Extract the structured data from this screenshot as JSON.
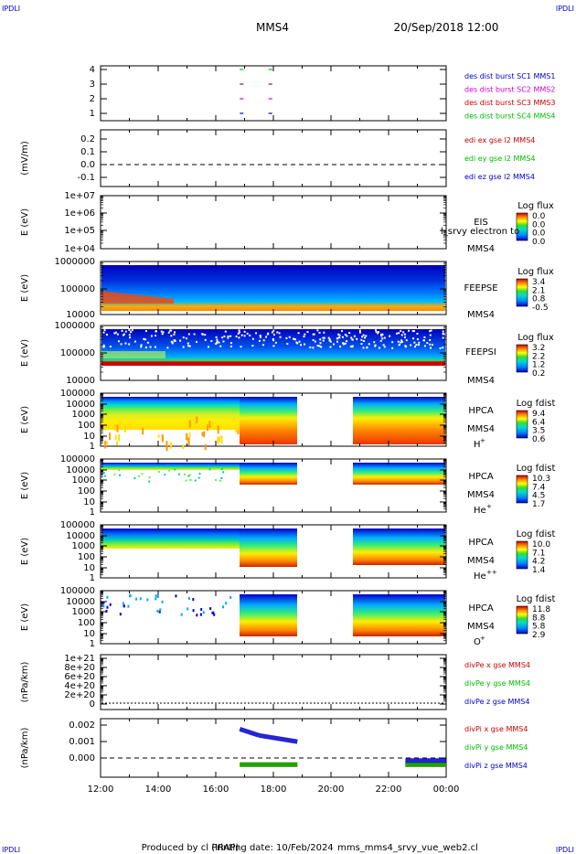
{
  "header": {
    "corner_tl": "IPDLI",
    "corner_tr": "IPDLI",
    "corner_bl": "IPDLI",
    "corner_br": "IPDLI",
    "spacecraft": "MMS4",
    "datetime": "20/Sep/2018 12:00"
  },
  "footer": {
    "produced_by": "Produced by cl (IRAP)",
    "printing_date": "Printing date: 10/Feb/2024",
    "filename": "mms_mms4_srvy_vue_web2.cl"
  },
  "x_ticks": [
    "12:00",
    "14:00",
    "16:00",
    "18:00",
    "20:00",
    "22:00",
    "00:00"
  ],
  "panels": {
    "burst": {
      "y_ticks": [
        "4",
        "3",
        "2",
        "1"
      ],
      "legend": [
        "des dist burst SC1 MMS1",
        "des dist burst SC2 MMS2",
        "des dist burst SC3 MMS3",
        "des dist burst SC4 MMS4"
      ],
      "legend_colors": [
        "#0000cc",
        "#cc00cc",
        "#cc0000",
        "#00bb00"
      ]
    },
    "edi": {
      "ylabel": "(mV/m)",
      "y_ticks": [
        "0.2",
        "0.1",
        "0.0",
        "-0.1"
      ],
      "legend": [
        "edi ex gse l2 MMS4",
        "edi ey gse l2 MMS4",
        "edi ez gse l2 MMS4"
      ],
      "legend_colors": [
        "#cc0000",
        "#00bb00",
        "#0000cc"
      ]
    },
    "eis": {
      "ylabel": "E (eV)",
      "y_ticks": [
        "1e+07",
        "1e+06",
        "1e+05",
        "1e+04"
      ],
      "label": "EIS",
      "sublabel": "MMS4",
      "extra": "l_srvy electron to",
      "cbar_title": "Log flux",
      "cbar_ticks": [
        "0.0",
        "0.0",
        "0.0",
        "0.0"
      ]
    },
    "feepse": {
      "ylabel": "E (eV)",
      "y_ticks": [
        "1000000",
        "100000",
        "10000"
      ],
      "label": "FEEPSE",
      "sublabel": "MMS4",
      "cbar_title": "Log flux",
      "cbar_ticks": [
        "3.4",
        "2.1",
        "0.8",
        "-0.5"
      ]
    },
    "feepsi": {
      "ylabel": "E (eV)",
      "y_ticks": [
        "1000000",
        "100000",
        "10000"
      ],
      "label": "FEEPSI",
      "sublabel": "MMS4",
      "cbar_title": "Log flux",
      "cbar_ticks": [
        "3.2",
        "2.2",
        "1.2",
        "0.2"
      ]
    },
    "hpca_h": {
      "ylabel": "E (eV)",
      "y_ticks": [
        "100000",
        "10000",
        "1000",
        "100",
        "10",
        "1"
      ],
      "label": "HPCA",
      "sublabel": "MMS4",
      "species": "H+",
      "cbar_title": "Log fdist",
      "cbar_ticks": [
        "9.4",
        "6.4",
        "3.5",
        "0.6"
      ]
    },
    "hpca_he": {
      "ylabel": "E (eV)",
      "y_ticks": [
        "100000",
        "10000",
        "1000",
        "100",
        "10",
        "1"
      ],
      "label": "HPCA",
      "sublabel": "MMS4",
      "species": "He+",
      "cbar_title": "Log fdist",
      "cbar_ticks": [
        "10.3",
        "7.4",
        "4.5",
        "1.7"
      ]
    },
    "hpca_hepp": {
      "ylabel": "E (eV)",
      "y_ticks": [
        "100000",
        "10000",
        "1000",
        "100",
        "10",
        "1"
      ],
      "label": "HPCA",
      "sublabel": "MMS4",
      "species": "He++",
      "cbar_title": "Log fdist",
      "cbar_ticks": [
        "10.0",
        "7.1",
        "4.2",
        "1.4"
      ]
    },
    "hpca_o": {
      "ylabel": "E (eV)",
      "y_ticks": [
        "100000",
        "10000",
        "1000",
        "100",
        "10",
        "1"
      ],
      "label": "HPCA",
      "sublabel": "MMS4",
      "species": "O+",
      "cbar_title": "Log fdist",
      "cbar_ticks": [
        "11.8",
        "8.8",
        "5.8",
        "2.9"
      ]
    },
    "divpe": {
      "ylabel": "(nPa/km)",
      "y_ticks": [
        "1e+21",
        "8e+20",
        "6e+20",
        "4e+20",
        "2e+20",
        "0"
      ],
      "legend": [
        "divPe x gse MMS4",
        "divPe y gse MMS4",
        "divPe z gse MMS4"
      ],
      "legend_colors": [
        "#cc0000",
        "#00bb00",
        "#0000cc"
      ]
    },
    "divpi": {
      "ylabel": "(nPa/km)",
      "y_ticks": [
        "0.002",
        "0.001",
        "0.000"
      ],
      "legend": [
        "divPi x gse MMS4",
        "divPi y gse MMS4",
        "divPi z gse MMS4"
      ],
      "legend_colors": [
        "#cc0000",
        "#00bb00",
        "#0000cc"
      ]
    }
  },
  "chart_data": [
    {
      "type": "scatter",
      "title": "des dist burst availability",
      "x_range": [
        "12:00",
        "00:00"
      ],
      "series": [
        {
          "name": "des dist burst SC1 MMS1",
          "y": 1,
          "x": [
            "16:50",
            "17:50"
          ]
        },
        {
          "name": "des dist burst SC2 MMS2",
          "y": 2,
          "x": [
            "16:50",
            "17:50"
          ]
        },
        {
          "name": "des dist burst SC3 MMS3",
          "y": 3,
          "x": [
            "16:50",
            "17:50"
          ]
        },
        {
          "name": "des dist burst SC4 MMS4",
          "y": 4,
          "x": [
            "16:50",
            "17:50"
          ]
        }
      ]
    },
    {
      "type": "line",
      "ylabel": "(mV/m)",
      "ylim": [
        -0.15,
        0.25
      ],
      "series": [
        {
          "name": "edi ex gse l2 MMS4",
          "values": []
        },
        {
          "name": "edi ey gse l2 MMS4",
          "values": []
        },
        {
          "name": "edi ez gse l2 MMS4",
          "values": []
        }
      ],
      "reference_line": 0.0
    },
    {
      "type": "heatmap",
      "label": "FEEPSE",
      "ylabel": "E (eV)",
      "ylim": [
        10000,
        1000000
      ],
      "colorbar": {
        "title": "Log flux",
        "range": [
          -0.5,
          3.4
        ]
      },
      "time_coverage": [
        [
          "12:00",
          "00:00"
        ]
      ]
    },
    {
      "type": "heatmap",
      "label": "FEEPSI",
      "ylabel": "E (eV)",
      "ylim": [
        10000,
        1000000
      ],
      "colorbar": {
        "title": "Log flux",
        "range": [
          0.2,
          3.2
        ]
      },
      "time_coverage": [
        [
          "12:00",
          "00:00"
        ]
      ]
    },
    {
      "type": "heatmap",
      "label": "HPCA H+",
      "ylabel": "E (eV)",
      "ylim": [
        1,
        100000
      ],
      "colorbar": {
        "title": "Log fdist",
        "range": [
          0.6,
          9.4
        ]
      },
      "time_coverage": [
        [
          "12:00",
          "18:50"
        ],
        [
          "20:45",
          "00:00"
        ]
      ]
    },
    {
      "type": "heatmap",
      "label": "HPCA He+",
      "ylabel": "E (eV)",
      "ylim": [
        1,
        100000
      ],
      "colorbar": {
        "title": "Log fdist",
        "range": [
          1.7,
          10.3
        ]
      },
      "time_coverage": [
        [
          "12:00",
          "18:50"
        ],
        [
          "20:45",
          "00:00"
        ]
      ]
    },
    {
      "type": "heatmap",
      "label": "HPCA He++",
      "ylabel": "E (eV)",
      "ylim": [
        1,
        100000
      ],
      "colorbar": {
        "title": "Log fdist",
        "range": [
          1.4,
          10.0
        ]
      },
      "time_coverage": [
        [
          "12:00",
          "18:50"
        ],
        [
          "20:45",
          "00:00"
        ]
      ]
    },
    {
      "type": "heatmap",
      "label": "HPCA O+",
      "ylabel": "E (eV)",
      "ylim": [
        1,
        100000
      ],
      "colorbar": {
        "title": "Log fdist",
        "range": [
          2.9,
          11.8
        ]
      },
      "time_coverage": [
        [
          "12:00",
          "18:50"
        ],
        [
          "20:45",
          "00:00"
        ]
      ]
    },
    {
      "type": "line",
      "ylabel": "(nPa/km)",
      "ylim": [
        0,
        1e+21
      ],
      "series": [
        {
          "name": "divPe x gse MMS4",
          "values": []
        },
        {
          "name": "divPe y gse MMS4",
          "values": []
        },
        {
          "name": "divPe z gse MMS4",
          "values": []
        }
      ]
    },
    {
      "type": "line",
      "ylabel": "(nPa/km)",
      "ylim": [
        -0.0006,
        0.0022
      ],
      "reference_line": 0.0,
      "series": [
        {
          "name": "divPi x gse MMS4",
          "x": [
            "16:50",
            "18:50",
            "22:35",
            "00:00"
          ],
          "values": [
            0.0,
            0.0,
            0.0,
            0.0
          ]
        },
        {
          "name": "divPi y gse MMS4",
          "x": [
            "16:50",
            "18:50",
            "22:35",
            "00:00"
          ],
          "values": [
            0.0,
            0.0,
            0.0,
            0.0
          ]
        },
        {
          "name": "divPi z gse MMS4",
          "x": [
            "16:50",
            "17:30",
            "18:50",
            "22:35",
            "00:00"
          ],
          "values": [
            0.0017,
            0.0014,
            0.0011,
            0.0002,
            0.0002
          ]
        }
      ]
    }
  ]
}
